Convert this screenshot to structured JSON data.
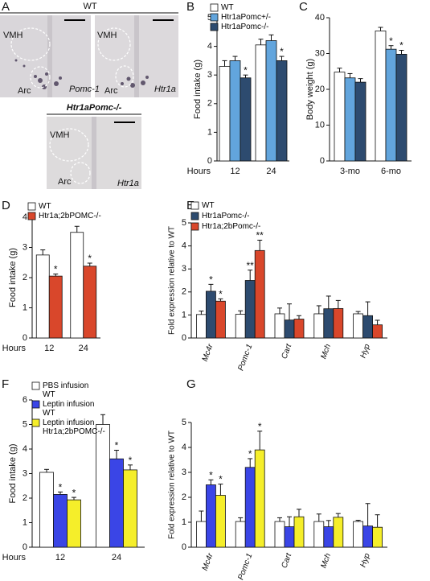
{
  "image_panel": {
    "panel": "A",
    "title": "WT",
    "knockout_title": "Htr1aPomc-/-",
    "images": [
      {
        "regions": [
          "VMH",
          "Arc"
        ],
        "gene": "Pomc-1"
      },
      {
        "regions": [
          "VMH",
          "Arc"
        ],
        "gene": "Htr1a"
      },
      {
        "regions": [
          "VMH",
          "Arc"
        ],
        "gene": "Htr1a"
      }
    ]
  },
  "chart_data": [
    {
      "type": "bar",
      "panel": "B",
      "ylabel": "Food intake (g)",
      "x_label": "Hours",
      "categories": [
        "12",
        "24"
      ],
      "ylim": [
        0,
        5
      ],
      "yticks": [
        0,
        1,
        2,
        3,
        4,
        5
      ],
      "series": [
        {
          "name": "WT",
          "color": "#ffffff",
          "values": [
            3.3,
            4.05
          ],
          "errors": [
            0.2,
            0.2
          ],
          "sig": [
            null,
            null
          ]
        },
        {
          "name": "Htr1aPomc+/-",
          "color": "#62a5dd",
          "values": [
            3.5,
            4.2
          ],
          "errors": [
            0.15,
            0.2
          ],
          "sig": [
            null,
            null
          ]
        },
        {
          "name": "Htr1aPomc-/-",
          "color": "#2d4b6f",
          "values": [
            2.9,
            3.5
          ],
          "errors": [
            0.1,
            0.15
          ],
          "sig": [
            "*",
            "*"
          ]
        }
      ]
    },
    {
      "type": "bar",
      "panel": "C",
      "ylabel": "Body weight (g)",
      "categories": [
        "3-mo",
        "6-mo"
      ],
      "ylim": [
        0,
        40
      ],
      "yticks": [
        0,
        10,
        20,
        30,
        40
      ],
      "series": [
        {
          "color": "#ffffff",
          "values": [
            24.8,
            36.3
          ],
          "errors": [
            1.1,
            1.0
          ],
          "sig": [
            null,
            null
          ]
        },
        {
          "color": "#62a5dd",
          "values": [
            23.2,
            31.2
          ],
          "errors": [
            1.2,
            1.0
          ],
          "sig": [
            null,
            "*"
          ]
        },
        {
          "color": "#2d4b6f",
          "values": [
            22.0,
            29.8
          ],
          "errors": [
            1.0,
            1.1
          ],
          "sig": [
            null,
            "*"
          ]
        }
      ]
    },
    {
      "type": "bar",
      "panel": "D",
      "ylabel": "Food intake (g)",
      "x_label": "Hours",
      "categories": [
        "12",
        "24"
      ],
      "ylim": [
        0,
        4
      ],
      "yticks": [
        0,
        1,
        2,
        3,
        4
      ],
      "series": [
        {
          "name": "WT",
          "color": "#ffffff",
          "values": [
            2.75,
            3.5
          ],
          "errors": [
            0.17,
            0.2
          ],
          "sig": [
            null,
            null
          ]
        },
        {
          "name": "Htr1a;2bPOMC-/-",
          "color": "#d9472b",
          "values": [
            2.05,
            2.38
          ],
          "errors": [
            0.07,
            0.1
          ],
          "sig": [
            "*",
            "*"
          ]
        }
      ]
    },
    {
      "type": "bar",
      "panel": "E",
      "ylabel": "Fold expression relative to WT",
      "categories": [
        "Mc4r",
        "Pomc-1",
        "Cart",
        "Mch",
        "Hyp"
      ],
      "ylim": [
        0,
        5
      ],
      "yticks": [
        0,
        1,
        2,
        3,
        4,
        5
      ],
      "series": [
        {
          "name": "WT",
          "color": "#ffffff",
          "values": [
            1.02,
            1.03,
            1.05,
            1.05,
            1.05
          ],
          "errors": [
            0.15,
            0.15,
            0.25,
            0.35,
            0.1
          ],
          "sig": [
            null,
            null,
            null,
            null,
            null
          ]
        },
        {
          "name": "Htr1aPomc-/-",
          "color": "#2d4b6f",
          "values": [
            2.03,
            2.5,
            0.78,
            1.27,
            0.97
          ],
          "errors": [
            0.3,
            0.45,
            0.7,
            0.55,
            0.6
          ],
          "sig": [
            "*",
            "**",
            null,
            null,
            null
          ]
        },
        {
          "name": "Htr1a;2bPomc-/-",
          "color": "#d9472b",
          "values": [
            1.6,
            3.8,
            0.82,
            1.28,
            0.57
          ],
          "errors": [
            0.1,
            0.45,
            0.15,
            0.35,
            0.2
          ],
          "sig": [
            "*",
            "**",
            null,
            null,
            null
          ]
        }
      ]
    },
    {
      "type": "bar",
      "panel": "F",
      "ylabel": "Food intake (g)",
      "x_label": "Hours",
      "categories": [
        "12",
        "24"
      ],
      "ylim": [
        0,
        6
      ],
      "yticks": [
        0,
        1,
        2,
        3,
        4,
        5,
        6
      ],
      "series": [
        {
          "name": "PBS infusion\nWT",
          "color": "#ffffff",
          "values": [
            3.05,
            5.0
          ],
          "errors": [
            0.12,
            0.4
          ],
          "sig": [
            null,
            null
          ]
        },
        {
          "name": "Leptin infusion\nWT",
          "color": "#3a45e6",
          "values": [
            2.15,
            3.6
          ],
          "errors": [
            0.1,
            0.35
          ],
          "sig": [
            "*",
            "*"
          ]
        },
        {
          "name": "Leptin infusion\nHtr1a;2bPOMC-/-",
          "color": "#f5ee2a",
          "values": [
            1.93,
            3.15
          ],
          "errors": [
            0.1,
            0.2
          ],
          "sig": [
            "*",
            "*"
          ]
        }
      ]
    },
    {
      "type": "bar",
      "panel": "G",
      "ylabel": "Fold expression relative to WT",
      "categories": [
        "Mc4r",
        "Pomc-1",
        "Cart",
        "Mch",
        "Hyp"
      ],
      "ylim": [
        0,
        5
      ],
      "yticks": [
        0,
        1,
        2,
        3,
        4,
        5
      ],
      "series": [
        {
          "color": "#ffffff",
          "values": [
            1.03,
            1.03,
            1.03,
            1.03,
            1.03
          ],
          "errors": [
            0.42,
            0.15,
            0.15,
            0.3,
            0.05
          ],
          "sig": [
            null,
            null,
            null,
            null,
            null
          ]
        },
        {
          "color": "#3a45e6",
          "values": [
            2.5,
            3.2,
            0.82,
            0.82,
            0.85
          ],
          "errors": [
            0.2,
            0.35,
            0.4,
            0.25,
            0.9
          ],
          "sig": [
            "*",
            "*",
            null,
            null,
            null
          ]
        },
        {
          "color": "#f5ee2a",
          "values": [
            2.08,
            3.9,
            1.22,
            1.2,
            0.8
          ],
          "errors": [
            0.45,
            0.75,
            0.3,
            0.15,
            0.5
          ],
          "sig": [
            "*",
            "*",
            null,
            null,
            null
          ]
        }
      ]
    }
  ]
}
